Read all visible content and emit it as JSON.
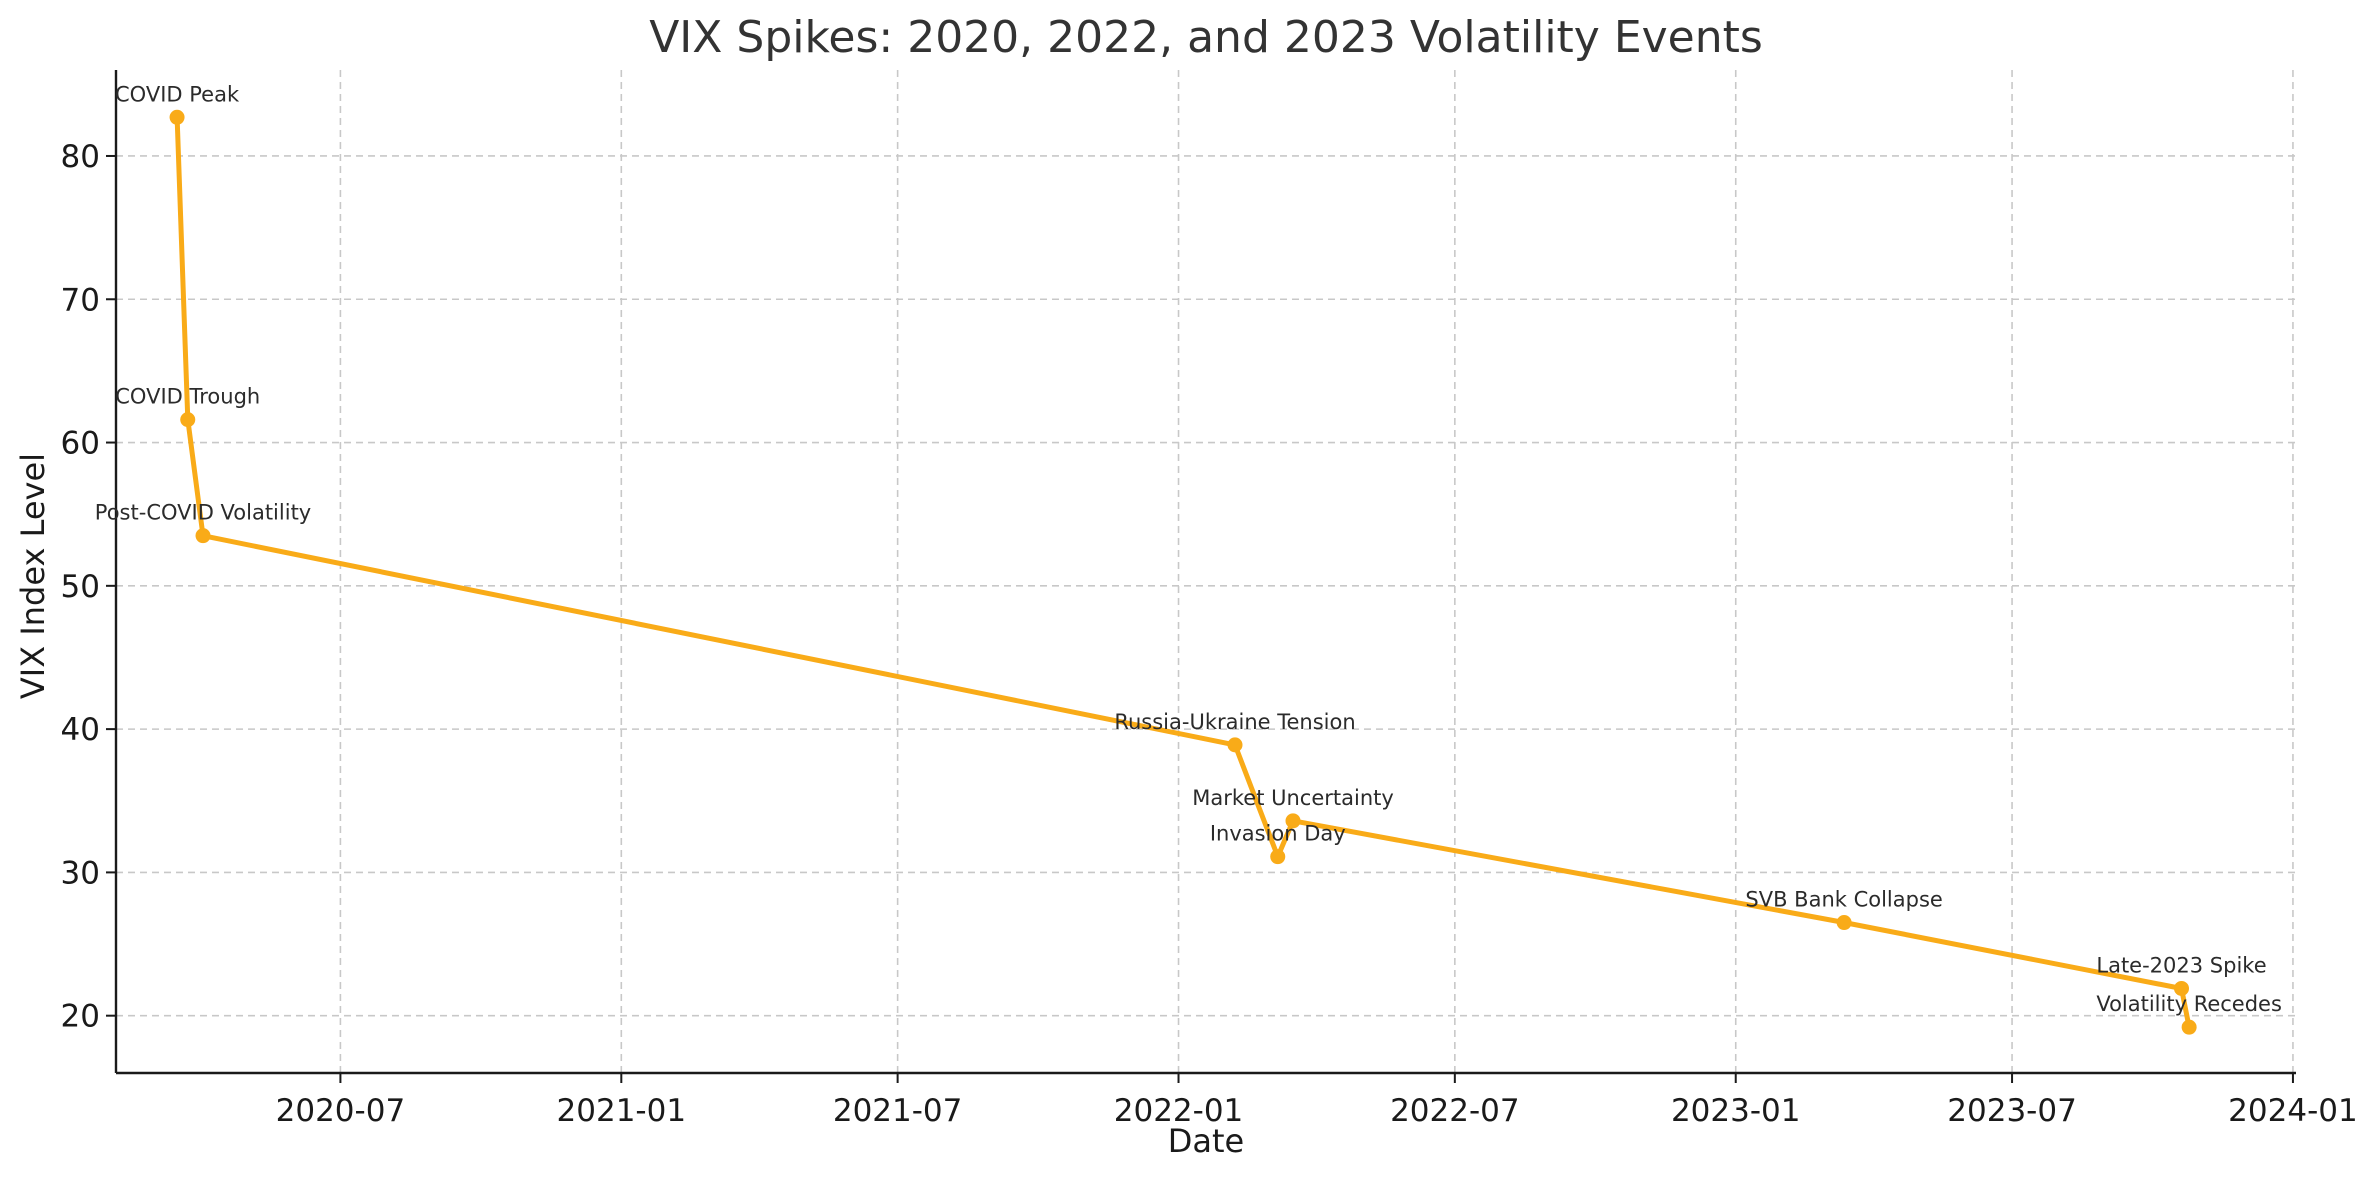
{
  "chart_data": {
    "type": "line",
    "title": "VIX Spikes: 2020, 2022, and 2023 Volatility Events",
    "xlabel": "Date",
    "ylabel": "VIX Index Level",
    "x_scale": "date",
    "xlim": [
      "2020-02-05",
      "2024-01-03"
    ],
    "ylim": [
      16,
      86
    ],
    "x_ticks": [
      "2020-07",
      "2021-01",
      "2021-07",
      "2022-01",
      "2022-07",
      "2023-01",
      "2023-07",
      "2024-01"
    ],
    "y_ticks": [
      20,
      30,
      40,
      50,
      60,
      70,
      80
    ],
    "grid": true,
    "color": "#f9ab18",
    "series": [
      {
        "points": [
          {
            "x": "2020-03-16",
            "y": 82.7,
            "label": "COVID Peak"
          },
          {
            "x": "2020-03-23",
            "y": 61.6,
            "label": "COVID Trough"
          },
          {
            "x": "2020-04-02",
            "y": 53.5,
            "label": "Post-COVID Volatility"
          },
          {
            "x": "2022-02-07",
            "y": 38.9,
            "label": "Russia-Ukraine Tension"
          },
          {
            "x": "2022-03-07",
            "y": 31.1,
            "label": "Invasion Day"
          },
          {
            "x": "2022-03-17",
            "y": 33.6,
            "label": "Market Uncertainty"
          },
          {
            "x": "2023-03-13",
            "y": 26.5,
            "label": "SVB Bank Collapse"
          },
          {
            "x": "2023-10-20",
            "y": 21.9,
            "label": "Late-2023 Spike"
          },
          {
            "x": "2023-10-25",
            "y": 19.2,
            "label": "Volatility Recedes"
          }
        ]
      }
    ]
  }
}
